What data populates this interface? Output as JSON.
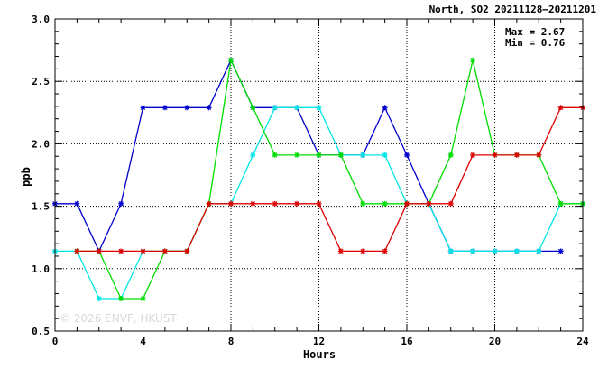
{
  "chart_data": {
    "type": "line",
    "title": "North, SO2 20211128–20211201",
    "xlabel": "Hours",
    "ylabel": "ppb",
    "xlim": [
      0,
      24
    ],
    "ylim": [
      0.5,
      3.0
    ],
    "x_ticks": [
      0,
      4,
      8,
      12,
      16,
      20,
      24
    ],
    "y_ticks": [
      0.5,
      1.0,
      1.5,
      2.0,
      2.5,
      3.0
    ],
    "y_tick_labels": [
      "0.5",
      "1.0",
      "1.5",
      "2.0",
      "2.5",
      "3.0"
    ],
    "grid": true,
    "stats": {
      "max": "Max = 2.67",
      "min": "Min = 0.76"
    },
    "watermark": "© 2026  ENVF, HKUST",
    "series": [
      {
        "color": "#0000cc",
        "points": [
          [
            0,
            1.52
          ],
          [
            1,
            1.52
          ],
          [
            2,
            1.14
          ],
          [
            3,
            1.52
          ],
          [
            4,
            2.29
          ],
          [
            5,
            2.29
          ],
          [
            6,
            2.29
          ],
          [
            7,
            2.29
          ],
          [
            8,
            2.67
          ],
          [
            9,
            2.29
          ],
          [
            10,
            2.29
          ],
          [
            11,
            2.29
          ],
          [
            12,
            1.91
          ],
          [
            13,
            1.91
          ],
          [
            14,
            1.91
          ],
          [
            15,
            2.29
          ],
          [
            16,
            1.91
          ],
          [
            17,
            1.52
          ],
          [
            18,
            1.14
          ],
          [
            19,
            1.14
          ],
          [
            20,
            1.14
          ],
          [
            21,
            1.14
          ],
          [
            22,
            1.14
          ],
          [
            23,
            1.14
          ]
        ]
      },
      {
        "color": "#00e5e5",
        "points": [
          [
            0,
            1.14
          ],
          [
            1,
            1.14
          ],
          [
            2,
            0.76
          ],
          [
            3,
            0.76
          ],
          [
            4,
            1.14
          ],
          [
            5,
            1.14
          ],
          [
            6,
            1.14
          ],
          [
            7,
            1.52
          ],
          [
            8,
            1.52
          ],
          [
            9,
            1.91
          ],
          [
            10,
            2.29
          ],
          [
            11,
            2.29
          ],
          [
            12,
            2.29
          ],
          [
            13,
            1.91
          ],
          [
            14,
            1.91
          ],
          [
            15,
            1.91
          ],
          [
            16,
            1.52
          ],
          [
            17,
            1.52
          ],
          [
            18,
            1.14
          ],
          [
            19,
            1.14
          ],
          [
            20,
            1.14
          ],
          [
            21,
            1.14
          ],
          [
            22,
            1.14
          ],
          [
            23,
            1.52
          ],
          [
            24,
            1.52
          ]
        ]
      },
      {
        "color": "#00dd00",
        "points": [
          [
            1,
            1.14
          ],
          [
            2,
            1.14
          ],
          [
            3,
            0.76
          ],
          [
            4,
            0.76
          ],
          [
            5,
            1.14
          ],
          [
            6,
            1.14
          ],
          [
            7,
            1.52
          ],
          [
            8,
            2.67
          ],
          [
            9,
            2.29
          ],
          [
            10,
            1.91
          ],
          [
            11,
            1.91
          ],
          [
            12,
            1.91
          ],
          [
            13,
            1.91
          ],
          [
            14,
            1.52
          ],
          [
            15,
            1.52
          ],
          [
            16,
            1.52
          ],
          [
            17,
            1.52
          ],
          [
            18,
            1.91
          ],
          [
            19,
            2.67
          ],
          [
            20,
            1.91
          ],
          [
            21,
            1.91
          ],
          [
            22,
            1.91
          ],
          [
            23,
            1.52
          ],
          [
            24,
            1.52
          ]
        ]
      },
      {
        "color": "#dd0000",
        "points": [
          [
            1,
            1.14
          ],
          [
            2,
            1.14
          ],
          [
            3,
            1.14
          ],
          [
            4,
            1.14
          ],
          [
            5,
            1.14
          ],
          [
            6,
            1.14
          ],
          [
            7,
            1.52
          ],
          [
            8,
            1.52
          ],
          [
            9,
            1.52
          ],
          [
            10,
            1.52
          ],
          [
            11,
            1.52
          ],
          [
            12,
            1.52
          ],
          [
            13,
            1.14
          ],
          [
            14,
            1.14
          ],
          [
            15,
            1.14
          ],
          [
            16,
            1.52
          ],
          [
            17,
            1.52
          ],
          [
            18,
            1.52
          ],
          [
            19,
            1.91
          ],
          [
            20,
            1.91
          ],
          [
            21,
            1.91
          ],
          [
            22,
            1.91
          ],
          [
            23,
            2.29
          ],
          [
            24,
            2.29
          ]
        ]
      }
    ]
  }
}
